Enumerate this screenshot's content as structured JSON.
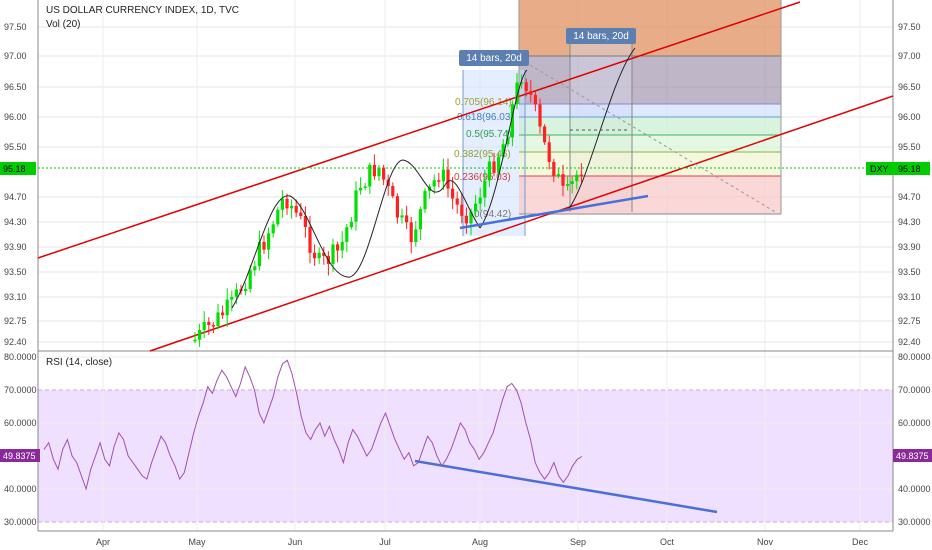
{
  "header": {
    "title": "US DOLLAR CURRENCY INDEX, 1D, TVC",
    "vol_label": "Vol (20)",
    "rsi_label": "RSI (14, close)"
  },
  "colors": {
    "up": "#00e000",
    "down": "#ff2020",
    "channel": "#e00000",
    "trend": "#4a6fd8",
    "rsi_line": "#a050b0",
    "rsi_band": "#f0e0ff",
    "current": "#00cc00"
  },
  "price_axis": {
    "ticks": [
      "97.50",
      "97.00",
      "96.50",
      "96.00",
      "95.50",
      "94.70",
      "94.30",
      "93.90",
      "93.50",
      "93.10",
      "92.75",
      "92.40"
    ],
    "tick_values": [
      97.5,
      97.0,
      96.5,
      96.0,
      95.5,
      94.7,
      94.3,
      93.9,
      93.5,
      93.1,
      92.75,
      92.4
    ],
    "left_ticks": [
      "97.50",
      "97.00",
      "96.50",
      "96.00",
      "95.50",
      "94.70",
      "94.30",
      "93.90",
      "93.50",
      "93.10",
      "92.75",
      "92.40"
    ],
    "current_label": "95.18",
    "current_symbol": "DXY",
    "current_value": 95.18
  },
  "rsi_axis": {
    "ticks": [
      "80.0000",
      "70.0000",
      "60.0000",
      "40.0000",
      "30.0000"
    ],
    "tick_values": [
      80,
      70,
      60,
      40,
      30
    ],
    "current_label": "49.8375",
    "current_value": 49.8375
  },
  "time_axis": {
    "labels": [
      "Apr",
      "May",
      "Jun",
      "Jul",
      "Aug",
      "Sep",
      "Oct",
      "Nov",
      "Dec"
    ]
  },
  "annotations": {
    "bars_label_1": "14 bars, 20d",
    "bars_label_2": "14 bars, 20d",
    "fib": [
      "0.705(96.14)",
      "0.618(96.03)",
      "0.5(95.74)",
      "0.382(95.46)",
      "0.236(95.03)",
      "0(94.42)"
    ]
  },
  "chart_data": [
    {
      "type": "candlestick",
      "title": "US DOLLAR CURRENCY INDEX, 1D, TVC",
      "x": [
        "May",
        "Jun",
        "Jul",
        "Aug",
        "Sep"
      ],
      "ylim": [
        92.4,
        97.5
      ],
      "last_value": 95.18,
      "annotations": [
        "0.705(96.14)",
        "0.618(96.03)",
        "0.5(95.74)",
        "0.382(95.46)",
        "0.236(95.03)",
        "0(94.42)"
      ]
    },
    {
      "type": "line",
      "title": "RSI (14, close)",
      "ylim": [
        30,
        80
      ],
      "series": [
        {
          "values": [
            52,
            54,
            49,
            46,
            52,
            55,
            50,
            48,
            44,
            40,
            46,
            50,
            54,
            49,
            47,
            53,
            57,
            55,
            50,
            48,
            46,
            44,
            43,
            48,
            52,
            56,
            54,
            50,
            47,
            43,
            45,
            51,
            57,
            62,
            66,
            71,
            69,
            73,
            76,
            74,
            71,
            68,
            72,
            77,
            74,
            70,
            63,
            60,
            64,
            68,
            74,
            78,
            79,
            75,
            69,
            62,
            57,
            55,
            58,
            60,
            56,
            59,
            55,
            52,
            48,
            54,
            58,
            56,
            53,
            50,
            52,
            56,
            60,
            63,
            59,
            55,
            52,
            49,
            51,
            47,
            48,
            52,
            56,
            54,
            50,
            47,
            49,
            52,
            56,
            60,
            58,
            54,
            52,
            49,
            51,
            54,
            57,
            62,
            67,
            71,
            72,
            70,
            66,
            60,
            55,
            48,
            45,
            43,
            45,
            48,
            44,
            42,
            44,
            47,
            49,
            49.84
          ]
        }
      ]
    }
  ]
}
